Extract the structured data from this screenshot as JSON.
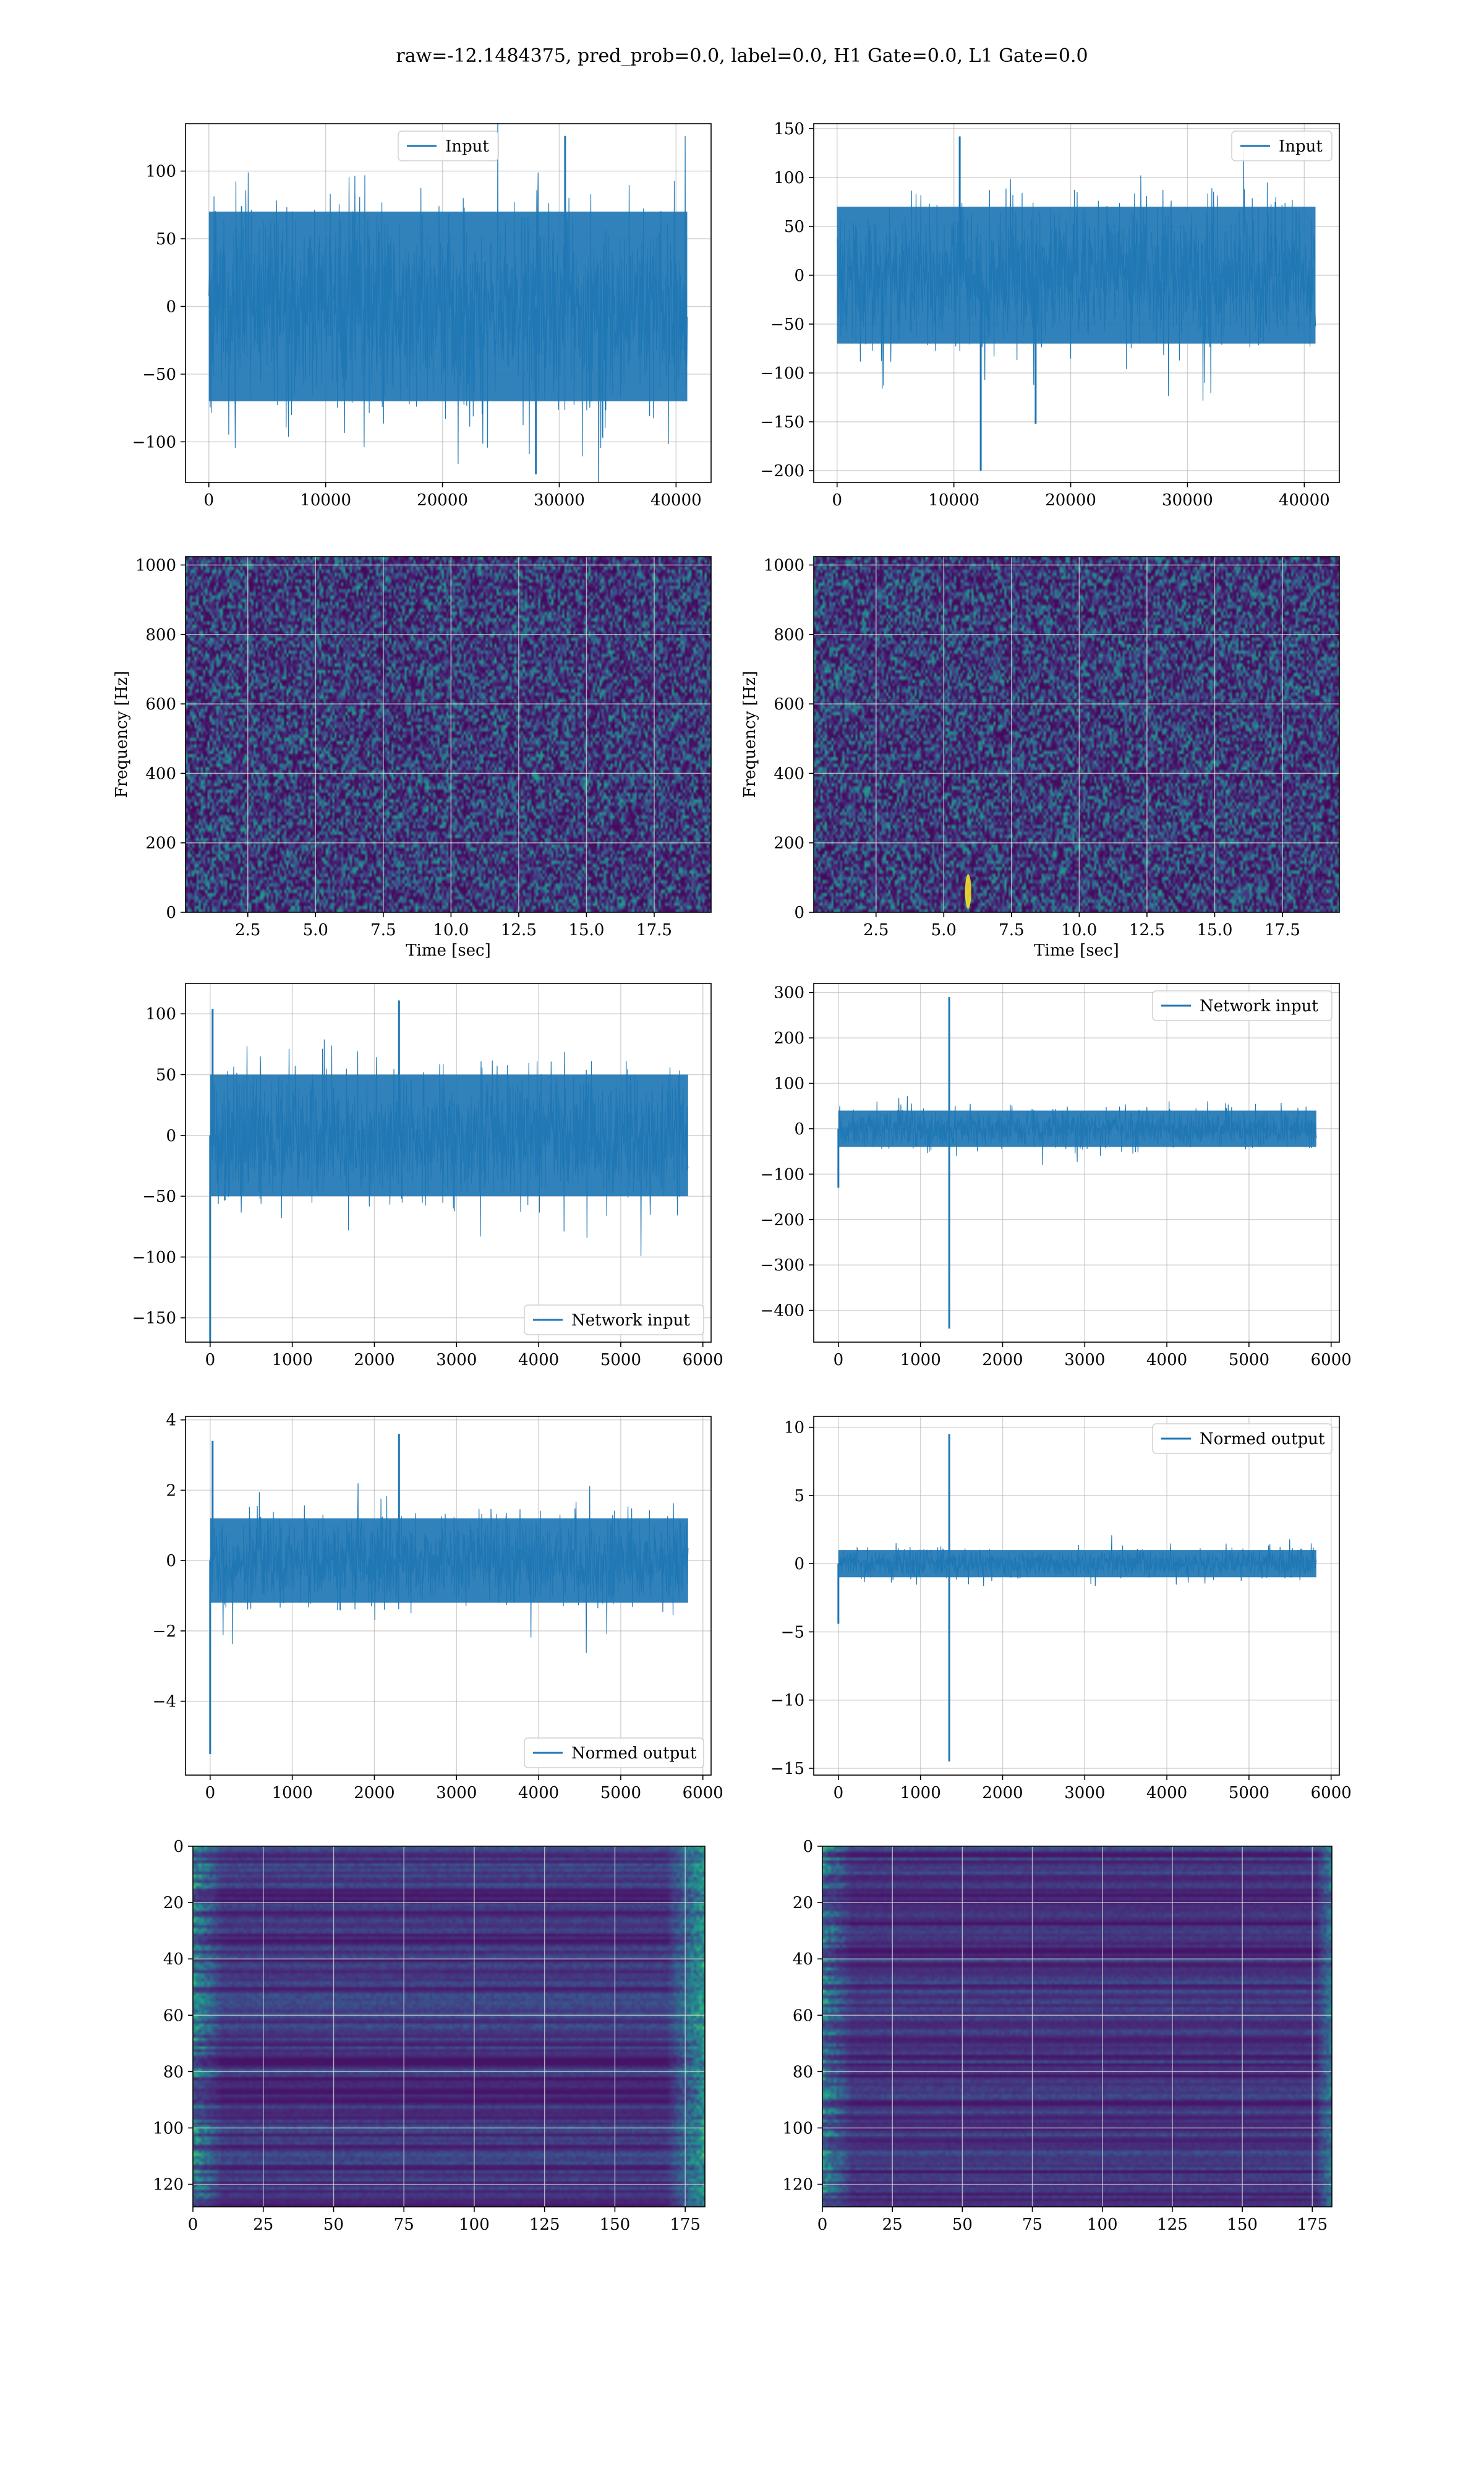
{
  "figure": {
    "suptitle": "raw=-12.1484375, pred_prob=0.0, label=0.0, H1 Gate=0.0, L1 Gate=0.0"
  },
  "colors": {
    "line": "#1f77b4",
    "grid": "#b0b0b0",
    "viridis_dark": "#440154",
    "viridis_mid": "#21918c",
    "viridis_bright": "#fde725"
  },
  "chart_data": [
    {
      "id": "h1-input",
      "type": "line",
      "series": [
        {
          "name": "Input",
          "summary": {
            "x_range": [
              0,
              40960
            ],
            "envelope_typical": [
              -70,
              70
            ],
            "peaks": [
              {
                "x": 30500,
                "y": 126
              },
              {
                "x": 28000,
                "y": -124
              }
            ]
          }
        }
      ],
      "xlim": [
        -2000,
        43000
      ],
      "ylim": [
        -130,
        135
      ],
      "xticks": [
        0,
        10000,
        20000,
        30000,
        40000
      ],
      "xtick_labels": [
        "0",
        "10000",
        "20000",
        "30000",
        "40000"
      ],
      "yticks": [
        -100,
        -50,
        0,
        50,
        100
      ],
      "ytick_labels": [
        "−100",
        "−50",
        "0",
        "50",
        "100"
      ],
      "xlabel": "",
      "ylabel": "",
      "legend": "upper center",
      "grid": true
    },
    {
      "id": "l1-input",
      "type": "line",
      "series": [
        {
          "name": "Input",
          "summary": {
            "x_range": [
              0,
              40960
            ],
            "envelope_typical": [
              -70,
              70
            ],
            "peaks": [
              {
                "x": 10500,
                "y": 142
              },
              {
                "x": 12300,
                "y": -200
              },
              {
                "x": 17000,
                "y": -152
              }
            ]
          }
        }
      ],
      "xlim": [
        -2000,
        43000
      ],
      "ylim": [
        -212,
        155
      ],
      "xticks": [
        0,
        10000,
        20000,
        30000,
        40000
      ],
      "xtick_labels": [
        "0",
        "10000",
        "20000",
        "30000",
        "40000"
      ],
      "yticks": [
        -200,
        -150,
        -100,
        -50,
        0,
        50,
        100,
        150
      ],
      "ytick_labels": [
        "−200",
        "−150",
        "−100",
        "−50",
        "0",
        "50",
        "100",
        "150"
      ],
      "xlabel": "",
      "ylabel": "",
      "legend": "upper right",
      "grid": true
    },
    {
      "id": "h1-spectrogram",
      "type": "heatmap",
      "xlim": [
        0.2,
        19.6
      ],
      "ylim": [
        0,
        1024
      ],
      "xticks": [
        2.5,
        5,
        7.5,
        10,
        12.5,
        15,
        17.5
      ],
      "xtick_labels": [
        "2.5",
        "5.0",
        "7.5",
        "10.0",
        "12.5",
        "15.0",
        "17.5"
      ],
      "yticks": [
        0,
        200,
        400,
        600,
        800,
        1000
      ],
      "ytick_labels": [
        "0",
        "200",
        "400",
        "600",
        "800",
        "1000"
      ],
      "xlabel": "Time [sec]",
      "ylabel": "Frequency [Hz]",
      "colormap": "viridis",
      "grid": true
    },
    {
      "id": "l1-spectrogram",
      "type": "heatmap",
      "xlim": [
        0.2,
        19.6
      ],
      "ylim": [
        0,
        1024
      ],
      "xticks": [
        2.5,
        5,
        7.5,
        10,
        12.5,
        15,
        17.5
      ],
      "xtick_labels": [
        "2.5",
        "5.0",
        "7.5",
        "10.0",
        "12.5",
        "15.0",
        "17.5"
      ],
      "yticks": [
        0,
        200,
        400,
        600,
        800,
        1000
      ],
      "ytick_labels": [
        "0",
        "200",
        "400",
        "600",
        "800",
        "1000"
      ],
      "xlabel": "Time [sec]",
      "ylabel": "Frequency [Hz]",
      "colormap": "viridis",
      "grid": true,
      "hotspots": [
        {
          "t": 5.9,
          "f": 60
        }
      ]
    },
    {
      "id": "h1-network-input",
      "type": "line",
      "series": [
        {
          "name": "Network input",
          "summary": {
            "x_range": [
              0,
              5820
            ],
            "envelope_typical": [
              -50,
              50
            ],
            "peaks": [
              {
                "x": 2300,
                "y": 111
              },
              {
                "x": 30,
                "y": 104
              },
              {
                "x": 0,
                "y": -170
              }
            ]
          }
        }
      ],
      "xlim": [
        -300,
        6100
      ],
      "ylim": [
        -170,
        125
      ],
      "xticks": [
        0,
        1000,
        2000,
        3000,
        4000,
        5000,
        6000
      ],
      "xtick_labels": [
        "0",
        "1000",
        "2000",
        "3000",
        "4000",
        "5000",
        "6000"
      ],
      "yticks": [
        -150,
        -100,
        -50,
        0,
        50,
        100
      ],
      "ytick_labels": [
        "−150",
        "−100",
        "−50",
        "0",
        "50",
        "100"
      ],
      "xlabel": "",
      "ylabel": "",
      "legend": "lower right",
      "grid": true
    },
    {
      "id": "l1-network-input",
      "type": "line",
      "series": [
        {
          "name": "Network input",
          "summary": {
            "x_range": [
              0,
              5820
            ],
            "envelope_typical": [
              -40,
              40
            ],
            "peaks": [
              {
                "x": 1350,
                "y": 290
              },
              {
                "x": 1350,
                "y": -440
              },
              {
                "x": 0,
                "y": -130
              }
            ]
          }
        }
      ],
      "xlim": [
        -300,
        6100
      ],
      "ylim": [
        -470,
        320
      ],
      "xticks": [
        0,
        1000,
        2000,
        3000,
        4000,
        5000,
        6000
      ],
      "xtick_labels": [
        "0",
        "1000",
        "2000",
        "3000",
        "4000",
        "5000",
        "6000"
      ],
      "yticks": [
        -400,
        -300,
        -200,
        -100,
        0,
        100,
        200,
        300
      ],
      "ytick_labels": [
        "−400",
        "−300",
        "−200",
        "−100",
        "0",
        "100",
        "200",
        "300"
      ],
      "xlabel": "",
      "ylabel": "",
      "legend": "upper right",
      "grid": true
    },
    {
      "id": "h1-normed-output",
      "type": "line",
      "series": [
        {
          "name": "Normed output",
          "summary": {
            "x_range": [
              0,
              5820
            ],
            "envelope_typical": [
              -1.2,
              1.2
            ],
            "peaks": [
              {
                "x": 2300,
                "y": 3.6
              },
              {
                "x": 30,
                "y": 3.4
              },
              {
                "x": 0,
                "y": -5.5
              }
            ]
          }
        }
      ],
      "xlim": [
        -300,
        6100
      ],
      "ylim": [
        -6.1,
        4.1
      ],
      "xticks": [
        0,
        1000,
        2000,
        3000,
        4000,
        5000,
        6000
      ],
      "xtick_labels": [
        "0",
        "1000",
        "2000",
        "3000",
        "4000",
        "5000",
        "6000"
      ],
      "yticks": [
        -4,
        -2,
        0,
        2,
        4
      ],
      "ytick_labels": [
        "−4",
        "−2",
        "0",
        "2",
        "4"
      ],
      "xlabel": "",
      "ylabel": "",
      "legend": "lower right",
      "grid": true
    },
    {
      "id": "l1-normed-output",
      "type": "line",
      "series": [
        {
          "name": "Normed output",
          "summary": {
            "x_range": [
              0,
              5820
            ],
            "envelope_typical": [
              -1.0,
              1.0
            ],
            "peaks": [
              {
                "x": 1350,
                "y": 9.5
              },
              {
                "x": 1350,
                "y": -14.5
              },
              {
                "x": 0,
                "y": -4.4
              }
            ]
          }
        }
      ],
      "xlim": [
        -300,
        6100
      ],
      "ylim": [
        -15.5,
        10.8
      ],
      "xticks": [
        0,
        1000,
        2000,
        3000,
        4000,
        5000,
        6000
      ],
      "xtick_labels": [
        "0",
        "1000",
        "2000",
        "3000",
        "4000",
        "5000",
        "6000"
      ],
      "yticks": [
        -15,
        -10,
        -5,
        0,
        5,
        10
      ],
      "ytick_labels": [
        "−15",
        "−10",
        "−5",
        "0",
        "5",
        "10"
      ],
      "xlabel": "",
      "ylabel": "",
      "legend": "upper right",
      "grid": true
    },
    {
      "id": "h1-feature-map",
      "type": "heatmap",
      "xlim": [
        0,
        182
      ],
      "ylim": [
        128,
        0
      ],
      "xticks": [
        0,
        25,
        50,
        75,
        100,
        125,
        150,
        175
      ],
      "xtick_labels": [
        "0",
        "25",
        "50",
        "75",
        "100",
        "125",
        "150",
        "175"
      ],
      "yticks": [
        0,
        20,
        40,
        60,
        80,
        100,
        120
      ],
      "ytick_labels": [
        "0",
        "20",
        "40",
        "60",
        "80",
        "100",
        "120"
      ],
      "xlabel": "",
      "ylabel": "",
      "colormap": "viridis",
      "grid": true
    },
    {
      "id": "l1-feature-map",
      "type": "heatmap",
      "xlim": [
        0,
        182
      ],
      "ylim": [
        128,
        0
      ],
      "xticks": [
        0,
        25,
        50,
        75,
        100,
        125,
        150,
        175
      ],
      "xtick_labels": [
        "0",
        "25",
        "50",
        "75",
        "100",
        "125",
        "150",
        "175"
      ],
      "yticks": [
        0,
        20,
        40,
        60,
        80,
        100,
        120
      ],
      "ytick_labels": [
        "0",
        "20",
        "40",
        "60",
        "80",
        "100",
        "120"
      ],
      "xlabel": "",
      "ylabel": "",
      "colormap": "viridis",
      "grid": true
    }
  ]
}
